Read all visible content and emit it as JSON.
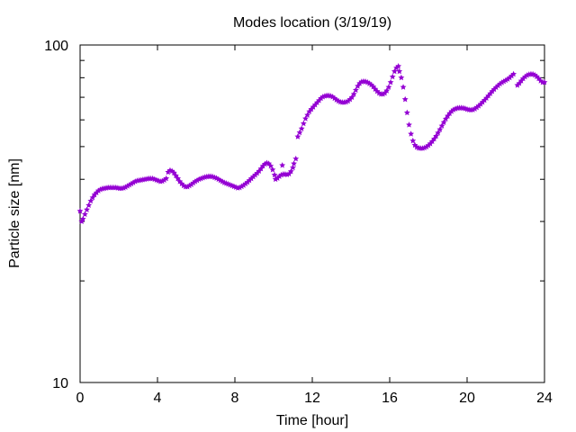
{
  "chart_data": {
    "type": "scatter",
    "title": "Modes location (3/19/19)",
    "xlabel": "Time [hour]",
    "ylabel": "Particle size [nm]",
    "xlim": [
      0,
      24
    ],
    "ylim": [
      10,
      100
    ],
    "yscale": "log",
    "x_ticks": [
      0,
      4,
      8,
      12,
      16,
      20,
      24
    ],
    "y_tick_labels": [
      "10",
      "100"
    ],
    "y_ticks": [
      10,
      100
    ],
    "grid": false,
    "marker": "star",
    "series_color": "#9400d3",
    "points": [
      [
        0.0,
        32.2
      ],
      [
        0.08,
        30.0
      ],
      [
        0.15,
        30.5
      ],
      [
        0.25,
        31.5
      ],
      [
        0.35,
        32.5
      ],
      [
        0.45,
        33.5
      ],
      [
        0.55,
        34.5
      ],
      [
        0.65,
        35.3
      ],
      [
        0.75,
        36.0
      ],
      [
        0.85,
        36.5
      ],
      [
        0.95,
        37.0
      ],
      [
        1.05,
        37.3
      ],
      [
        1.15,
        37.5
      ],
      [
        1.25,
        37.6
      ],
      [
        1.35,
        37.7
      ],
      [
        1.45,
        37.8
      ],
      [
        1.55,
        37.8
      ],
      [
        1.65,
        37.8
      ],
      [
        1.75,
        37.8
      ],
      [
        1.85,
        37.8
      ],
      [
        1.95,
        37.7
      ],
      [
        2.05,
        37.6
      ],
      [
        2.15,
        37.6
      ],
      [
        2.25,
        37.7
      ],
      [
        2.35,
        37.9
      ],
      [
        2.45,
        38.2
      ],
      [
        2.55,
        38.5
      ],
      [
        2.65,
        38.8
      ],
      [
        2.75,
        39.1
      ],
      [
        2.85,
        39.4
      ],
      [
        2.95,
        39.6
      ],
      [
        3.05,
        39.7
      ],
      [
        3.15,
        39.8
      ],
      [
        3.25,
        39.9
      ],
      [
        3.35,
        40.0
      ],
      [
        3.45,
        40.1
      ],
      [
        3.55,
        40.2
      ],
      [
        3.65,
        40.2
      ],
      [
        3.75,
        40.2
      ],
      [
        3.85,
        40.0
      ],
      [
        3.95,
        39.8
      ],
      [
        4.05,
        39.6
      ],
      [
        4.15,
        39.4
      ],
      [
        4.25,
        39.5
      ],
      [
        4.35,
        39.8
      ],
      [
        4.45,
        40.2
      ],
      [
        4.55,
        42.0
      ],
      [
        4.65,
        42.5
      ],
      [
        4.75,
        42.3
      ],
      [
        4.85,
        41.8
      ],
      [
        4.95,
        41.0
      ],
      [
        5.05,
        40.2
      ],
      [
        5.15,
        39.4
      ],
      [
        5.25,
        38.8
      ],
      [
        5.35,
        38.3
      ],
      [
        5.45,
        38.0
      ],
      [
        5.55,
        38.0
      ],
      [
        5.65,
        38.3
      ],
      [
        5.75,
        38.6
      ],
      [
        5.85,
        39.0
      ],
      [
        5.95,
        39.4
      ],
      [
        6.05,
        39.7
      ],
      [
        6.15,
        40.0
      ],
      [
        6.25,
        40.2
      ],
      [
        6.35,
        40.4
      ],
      [
        6.45,
        40.6
      ],
      [
        6.55,
        40.7
      ],
      [
        6.65,
        40.8
      ],
      [
        6.75,
        40.8
      ],
      [
        6.85,
        40.7
      ],
      [
        6.95,
        40.5
      ],
      [
        7.05,
        40.3
      ],
      [
        7.15,
        40.0
      ],
      [
        7.25,
        39.7
      ],
      [
        7.35,
        39.4
      ],
      [
        7.45,
        39.1
      ],
      [
        7.55,
        38.9
      ],
      [
        7.65,
        38.7
      ],
      [
        7.75,
        38.5
      ],
      [
        7.85,
        38.3
      ],
      [
        7.95,
        38.1
      ],
      [
        8.05,
        37.9
      ],
      [
        8.15,
        37.7
      ],
      [
        8.25,
        37.8
      ],
      [
        8.35,
        38.1
      ],
      [
        8.45,
        38.4
      ],
      [
        8.55,
        38.8
      ],
      [
        8.65,
        39.2
      ],
      [
        8.75,
        39.7
      ],
      [
        8.85,
        40.2
      ],
      [
        8.95,
        40.7
      ],
      [
        9.05,
        41.2
      ],
      [
        9.15,
        41.7
      ],
      [
        9.25,
        42.3
      ],
      [
        9.35,
        43.0
      ],
      [
        9.45,
        43.8
      ],
      [
        9.55,
        44.4
      ],
      [
        9.65,
        44.7
      ],
      [
        9.75,
        44.5
      ],
      [
        9.85,
        43.8
      ],
      [
        9.95,
        42.7
      ],
      [
        10.05,
        41.2
      ],
      [
        10.1,
        40.0
      ],
      [
        10.2,
        40.3
      ],
      [
        10.3,
        40.8
      ],
      [
        10.4,
        41.2
      ],
      [
        10.5,
        41.4
      ],
      [
        10.6,
        41.4
      ],
      [
        10.7,
        41.3
      ],
      [
        10.8,
        41.5
      ],
      [
        10.9,
        42.2
      ],
      [
        11.0,
        43.3
      ],
      [
        11.05,
        44.5
      ],
      [
        10.45,
        44.0
      ],
      [
        11.15,
        46.0
      ],
      [
        11.25,
        53.5
      ],
      [
        11.35,
        55.0
      ],
      [
        11.45,
        56.5
      ],
      [
        11.55,
        58.5
      ],
      [
        11.65,
        60.5
      ],
      [
        11.75,
        62.0
      ],
      [
        11.85,
        63.5
      ],
      [
        11.95,
        64.5
      ],
      [
        12.05,
        65.5
      ],
      [
        12.15,
        66.5
      ],
      [
        12.25,
        67.5
      ],
      [
        12.35,
        68.5
      ],
      [
        12.45,
        69.5
      ],
      [
        12.55,
        70.2
      ],
      [
        12.65,
        70.6
      ],
      [
        12.75,
        70.8
      ],
      [
        12.85,
        70.8
      ],
      [
        12.95,
        70.6
      ],
      [
        13.05,
        70.2
      ],
      [
        13.15,
        69.5
      ],
      [
        13.25,
        68.8
      ],
      [
        13.35,
        68.2
      ],
      [
        13.45,
        67.8
      ],
      [
        13.55,
        67.6
      ],
      [
        13.65,
        67.6
      ],
      [
        13.75,
        67.8
      ],
      [
        13.85,
        68.2
      ],
      [
        13.95,
        69.0
      ],
      [
        14.05,
        70.0
      ],
      [
        14.15,
        71.5
      ],
      [
        14.25,
        73.5
      ],
      [
        14.35,
        75.5
      ],
      [
        14.45,
        77.0
      ],
      [
        14.55,
        77.8
      ],
      [
        14.65,
        78.0
      ],
      [
        14.75,
        77.9
      ],
      [
        14.85,
        77.5
      ],
      [
        14.95,
        76.9
      ],
      [
        15.05,
        76.2
      ],
      [
        15.15,
        75.2
      ],
      [
        15.25,
        74.0
      ],
      [
        15.35,
        72.9
      ],
      [
        15.45,
        72.0
      ],
      [
        15.55,
        71.5
      ],
      [
        15.65,
        71.5
      ],
      [
        15.75,
        72.0
      ],
      [
        15.85,
        73.2
      ],
      [
        15.95,
        75.0
      ],
      [
        16.05,
        77.5
      ],
      [
        16.15,
        80.5
      ],
      [
        16.25,
        83.5
      ],
      [
        16.35,
        85.5
      ],
      [
        16.45,
        86.5
      ],
      [
        16.5,
        83.5
      ],
      [
        16.6,
        80.0
      ],
      [
        16.7,
        75.0
      ],
      [
        16.8,
        69.0
      ],
      [
        16.9,
        63.0
      ],
      [
        17.0,
        58.0
      ],
      [
        17.1,
        54.5
      ],
      [
        17.2,
        52.0
      ],
      [
        17.3,
        50.5
      ],
      [
        17.4,
        49.8
      ],
      [
        17.5,
        49.5
      ],
      [
        17.6,
        49.4
      ],
      [
        17.7,
        49.4
      ],
      [
        17.8,
        49.6
      ],
      [
        17.9,
        49.9
      ],
      [
        18.0,
        50.4
      ],
      [
        18.1,
        51.0
      ],
      [
        18.2,
        51.8
      ],
      [
        18.3,
        52.7
      ],
      [
        18.4,
        53.7
      ],
      [
        18.5,
        54.9
      ],
      [
        18.6,
        56.2
      ],
      [
        18.7,
        57.6
      ],
      [
        18.8,
        59.0
      ],
      [
        18.9,
        60.4
      ],
      [
        19.0,
        61.6
      ],
      [
        19.1,
        62.7
      ],
      [
        19.2,
        63.6
      ],
      [
        19.3,
        64.3
      ],
      [
        19.4,
        64.7
      ],
      [
        19.5,
        65.0
      ],
      [
        19.6,
        65.1
      ],
      [
        19.7,
        65.1
      ],
      [
        19.8,
        65.0
      ],
      [
        19.9,
        64.8
      ],
      [
        20.0,
        64.5
      ],
      [
        20.1,
        64.3
      ],
      [
        20.2,
        64.2
      ],
      [
        20.3,
        64.3
      ],
      [
        20.4,
        64.7
      ],
      [
        20.5,
        65.3
      ],
      [
        20.6,
        66.0
      ],
      [
        20.7,
        66.8
      ],
      [
        20.8,
        67.7
      ],
      [
        20.9,
        68.6
      ],
      [
        21.0,
        69.6
      ],
      [
        21.1,
        70.7
      ],
      [
        21.2,
        71.8
      ],
      [
        21.3,
        72.9
      ],
      [
        21.4,
        73.9
      ],
      [
        21.5,
        74.9
      ],
      [
        21.6,
        75.8
      ],
      [
        21.7,
        76.7
      ],
      [
        21.8,
        77.4
      ],
      [
        21.9,
        78.0
      ],
      [
        22.0,
        78.6
      ],
      [
        22.1,
        79.2
      ],
      [
        22.2,
        80.0
      ],
      [
        22.3,
        81.0
      ],
      [
        22.4,
        82.0
      ],
      [
        22.6,
        76.0
      ],
      [
        22.7,
        77.0
      ],
      [
        22.8,
        78.3
      ],
      [
        22.9,
        79.5
      ],
      [
        23.0,
        80.5
      ],
      [
        23.1,
        81.3
      ],
      [
        23.2,
        81.8
      ],
      [
        23.3,
        82.0
      ],
      [
        23.4,
        81.9
      ],
      [
        23.5,
        81.4
      ],
      [
        23.6,
        80.6
      ],
      [
        23.7,
        79.5
      ],
      [
        23.8,
        78.3
      ],
      [
        23.9,
        77.5
      ],
      [
        24.0,
        77.5
      ]
    ]
  }
}
